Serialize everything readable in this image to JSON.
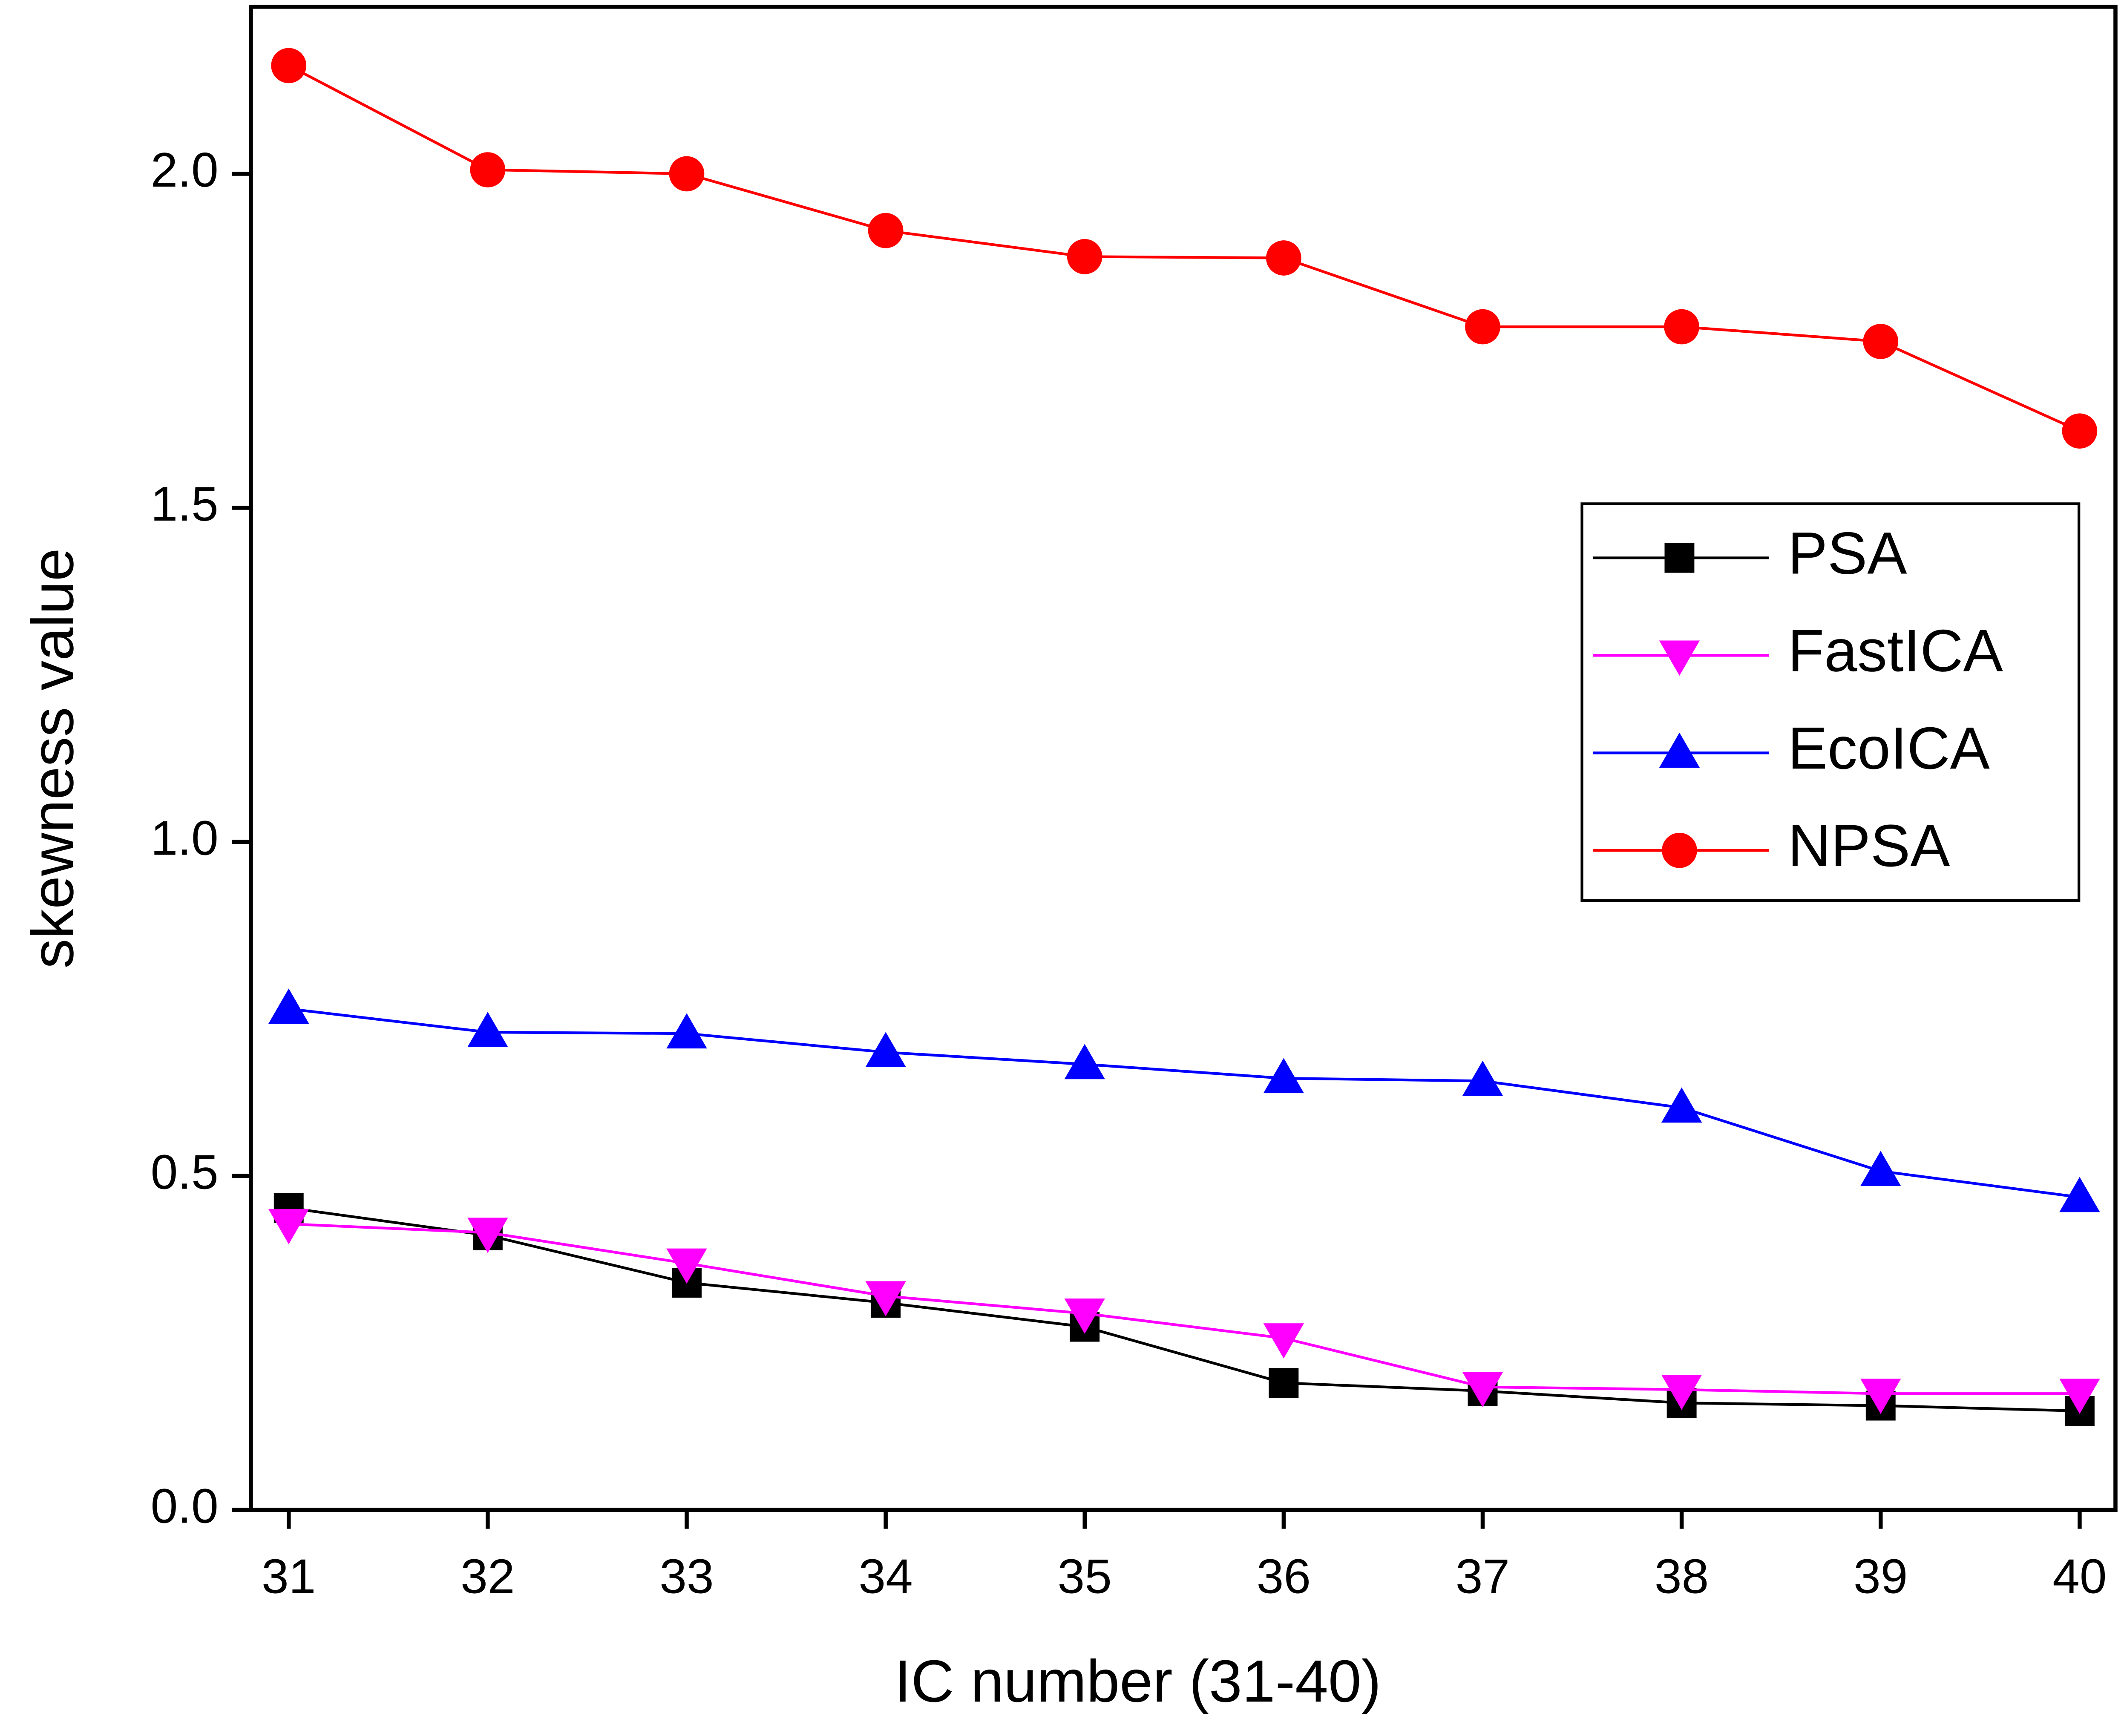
{
  "chart_data": {
    "type": "line",
    "x_label": "IC number (31-40)",
    "y_label": "skewness value",
    "x": [
      31,
      32,
      33,
      34,
      35,
      36,
      37,
      38,
      39,
      40
    ],
    "xlim": [
      30.81,
      40.18
    ],
    "xticks": [
      31,
      32,
      33,
      34,
      35,
      36,
      37,
      38,
      39,
      40
    ],
    "ylim": [
      0,
      2.25
    ],
    "yticks": [
      {
        "value": 0,
        "label": "0.0"
      },
      {
        "value": 0.5,
        "label": "0.5"
      },
      {
        "value": 1,
        "label": "1.0"
      },
      {
        "value": 1.5,
        "label": "1.5"
      },
      {
        "value": 2,
        "label": "2.0"
      }
    ],
    "legend": "right",
    "series": [
      {
        "name": "PSA",
        "color": "#000000",
        "marker": "square",
        "values": [
          0.452,
          0.411,
          0.34,
          0.31,
          0.274,
          0.19,
          0.178,
          0.16,
          0.156,
          0.148
        ]
      },
      {
        "name": "FastICA",
        "color": "#ff00ff",
        "marker": "triangle-down",
        "values": [
          0.428,
          0.415,
          0.369,
          0.32,
          0.294,
          0.257,
          0.184,
          0.18,
          0.174,
          0.174
        ]
      },
      {
        "name": "EcoICA",
        "color": "#0000ff",
        "marker": "triangle-up",
        "values": [
          0.75,
          0.715,
          0.713,
          0.685,
          0.667,
          0.646,
          0.642,
          0.602,
          0.507,
          0.468
        ]
      },
      {
        "name": "NPSA",
        "color": "#ff0000",
        "marker": "circle",
        "values": [
          2.162,
          2.006,
          2.0,
          1.915,
          1.876,
          1.874,
          1.771,
          1.771,
          1.749,
          1.615
        ]
      }
    ]
  }
}
